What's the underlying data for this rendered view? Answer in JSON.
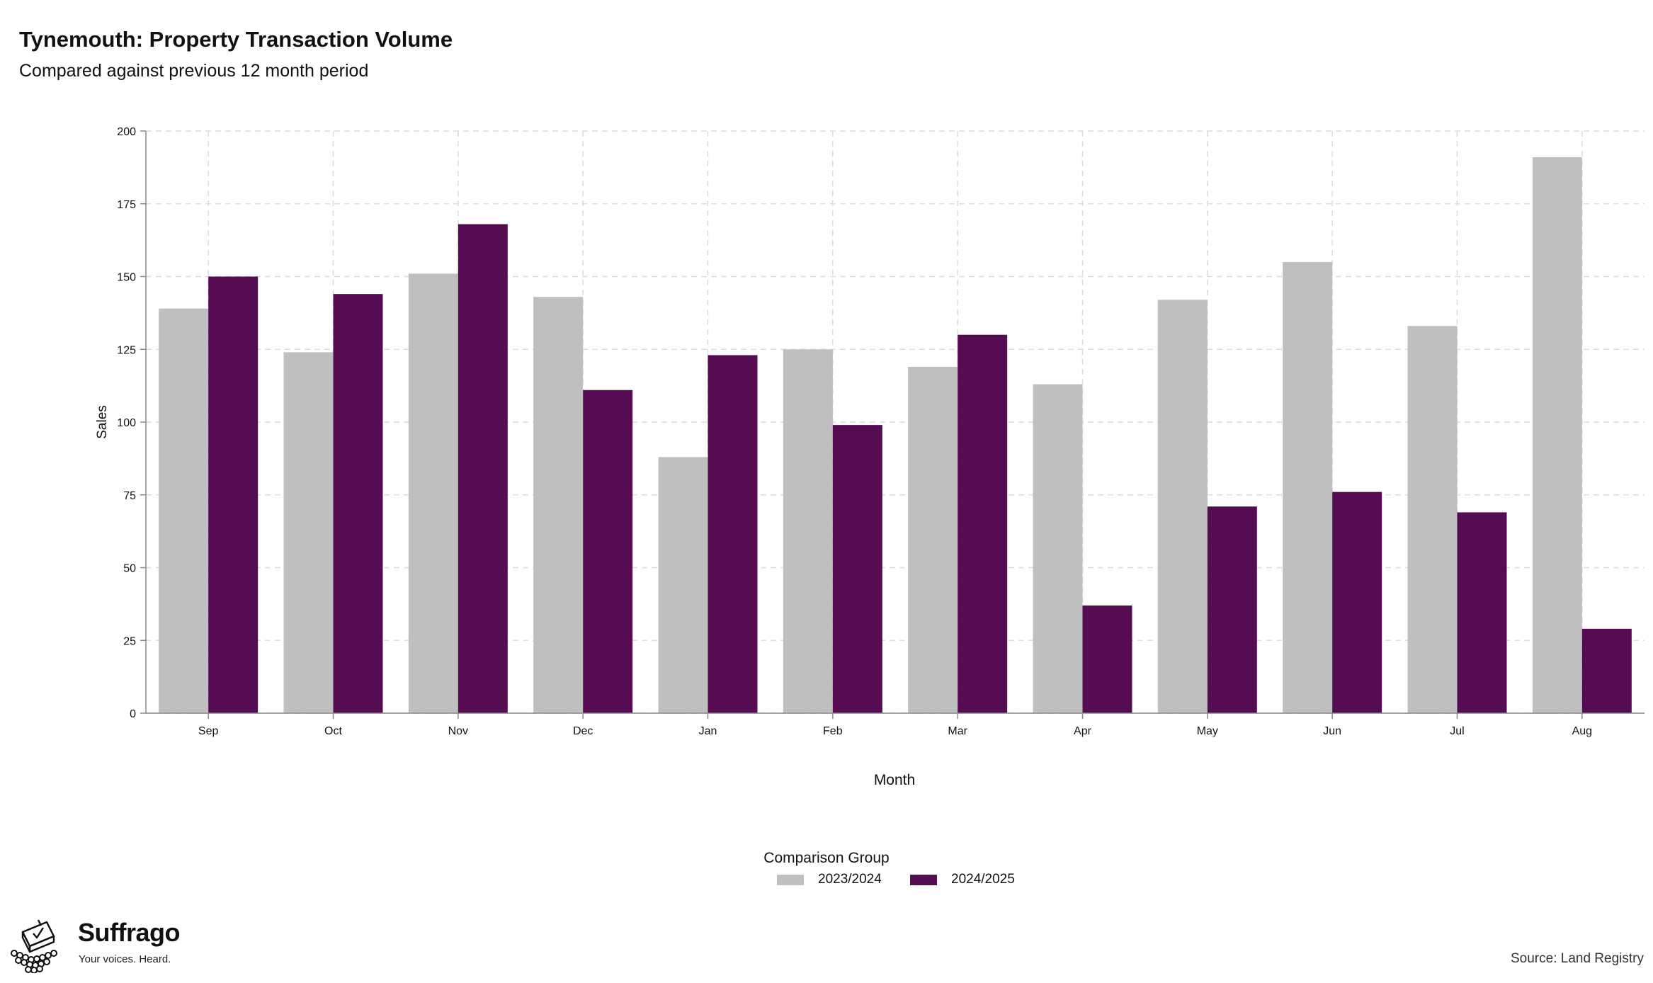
{
  "title": "Tynemouth: Property Transaction Volume",
  "subtitle": "Compared against previous 12 month period",
  "source": "Source: Land Registry",
  "brand": {
    "name": "Suffrago",
    "tagline": "Your voices. Heard.",
    "logo_icon": "ballot-box-icon"
  },
  "legend": {
    "title": "Comparison Group",
    "items": [
      {
        "label": "2023/2024",
        "color": "#bfbfbf"
      },
      {
        "label": "2024/2025",
        "color": "#560c53"
      }
    ]
  },
  "chart_data": {
    "type": "bar",
    "xlabel": "Month",
    "ylabel": "Sales",
    "ylim": [
      0,
      200
    ],
    "yticks": [
      0,
      25,
      50,
      75,
      100,
      125,
      150,
      175,
      200
    ],
    "grid": true,
    "legend_position": "bottom",
    "categories": [
      "Sep",
      "Oct",
      "Nov",
      "Dec",
      "Jan",
      "Feb",
      "Mar",
      "Apr",
      "May",
      "Jun",
      "Jul",
      "Aug"
    ],
    "series": [
      {
        "name": "2023/2024",
        "color": "#bfbfbf",
        "values": [
          139,
          124,
          151,
          143,
          88,
          125,
          119,
          113,
          142,
          155,
          133,
          191
        ]
      },
      {
        "name": "2024/2025",
        "color": "#560c53",
        "values": [
          150,
          144,
          168,
          111,
          123,
          99,
          130,
          37,
          71,
          76,
          69,
          29
        ]
      }
    ]
  }
}
